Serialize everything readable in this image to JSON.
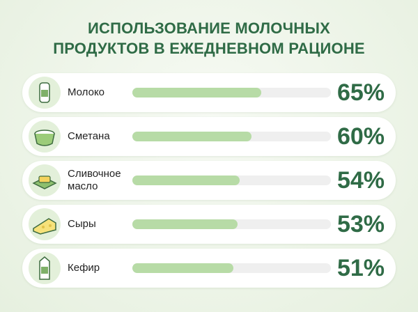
{
  "chart_data": {
    "type": "bar",
    "orientation": "horizontal",
    "title": "ИСПОЛЬЗОВАНИЕ МОЛОЧНЫХ\nПРОДУКТОВ В ЕЖЕДНЕВНОМ РАЦИОНЕ",
    "categories": [
      "Молоко",
      "Сметана",
      "Сливочное масло",
      "Сыры",
      "Кефир"
    ],
    "values": [
      65,
      60,
      54,
      53,
      51
    ],
    "value_labels": [
      "65%",
      "60%",
      "54%",
      "53%",
      "51%"
    ],
    "color": "#b7dba6",
    "xlim": [
      0,
      100
    ]
  }
}
